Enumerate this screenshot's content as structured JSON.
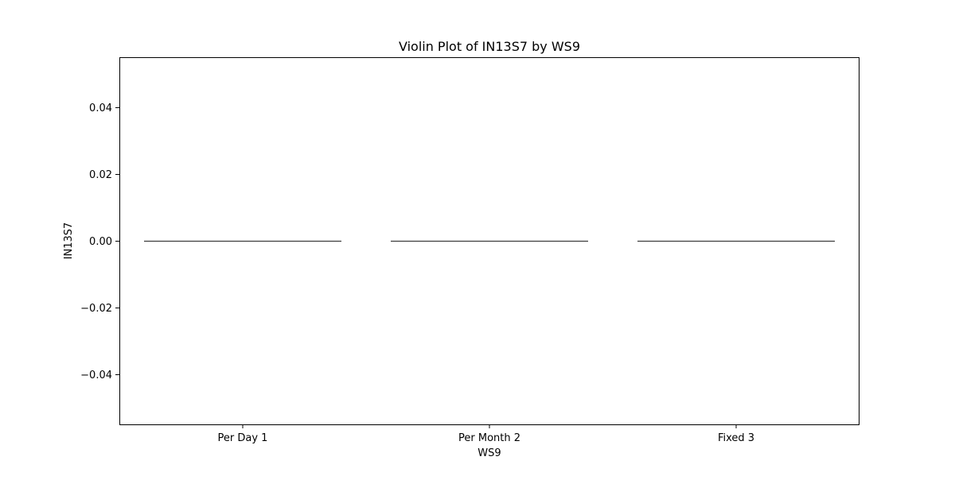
{
  "chart_data": {
    "type": "violin",
    "title": "Violin Plot of IN13S7 by WS9",
    "xlabel": "WS9",
    "ylabel": "IN13S7",
    "categories": [
      "Per Day 1",
      "Per Month 2",
      "Fixed 3"
    ],
    "values": [
      [
        0.0
      ],
      [
        0.0
      ],
      [
        0.0
      ]
    ],
    "ylim": [
      -0.055,
      0.055
    ],
    "yticks": [
      0.04,
      0.02,
      0.0,
      -0.02,
      -0.04
    ],
    "ytick_labels": [
      "0.04",
      "0.02",
      "0.00",
      "−0.02",
      "−0.04"
    ],
    "grid": false,
    "legend": "none",
    "colors": {
      "violin_line": "#3d3d3d",
      "axes": "#000000"
    }
  }
}
